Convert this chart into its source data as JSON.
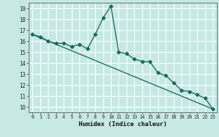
{
  "xlabel": "Humidex (Indice chaleur)",
  "background_color": "#c6e9e6",
  "grid_color": "#ffffff",
  "line_color": "#1a6b5a",
  "ylim": [
    9.5,
    19.5
  ],
  "xlim": [
    -0.5,
    23.5
  ],
  "yticks": [
    10,
    11,
    12,
    13,
    14,
    15,
    16,
    17,
    18,
    19
  ],
  "xticks": [
    0,
    1,
    2,
    3,
    4,
    5,
    6,
    7,
    8,
    9,
    10,
    11,
    12,
    13,
    14,
    15,
    16,
    17,
    18,
    19,
    20,
    21,
    22,
    23
  ],
  "xtick_labels": [
    "0",
    "1",
    "2",
    "3",
    "4",
    "5",
    "6",
    "7",
    "8",
    "9",
    "10",
    "11",
    "12",
    "13",
    "14",
    "15",
    "16",
    "17",
    "18",
    "19",
    "20",
    "21",
    "22",
    "23"
  ],
  "series1_x": [
    0,
    1,
    2,
    3,
    4,
    5,
    6,
    7,
    8,
    9,
    10,
    11,
    12,
    13,
    14,
    15,
    16,
    17,
    18,
    19,
    20,
    21,
    22,
    23
  ],
  "series1_y": [
    16.6,
    16.4,
    16.0,
    15.8,
    15.8,
    15.5,
    15.7,
    15.3,
    16.6,
    18.1,
    19.2,
    15.0,
    14.85,
    14.35,
    14.15,
    14.1,
    13.1,
    12.85,
    12.2,
    11.5,
    11.4,
    11.1,
    10.8,
    9.8
  ],
  "series2_x": [
    0,
    23
  ],
  "series2_y": [
    16.6,
    9.8
  ],
  "marker": "D",
  "marker_size": 2.5,
  "line_width": 1.0
}
